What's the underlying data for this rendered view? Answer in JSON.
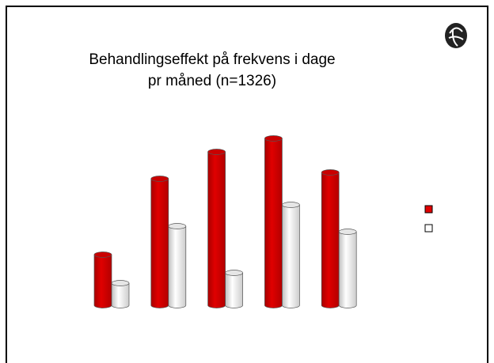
{
  "chart_data": {
    "type": "bar",
    "title": "Behandlingseffekt på frekvens i dage pr måned (n=1326)",
    "series": [
      {
        "color": "#e00000",
        "values": [
          64,
          160,
          194,
          211,
          168
        ]
      },
      {
        "color": "#ffffff",
        "values": [
          28,
          100,
          41,
          127,
          93
        ]
      }
    ],
    "legend": "right"
  }
}
